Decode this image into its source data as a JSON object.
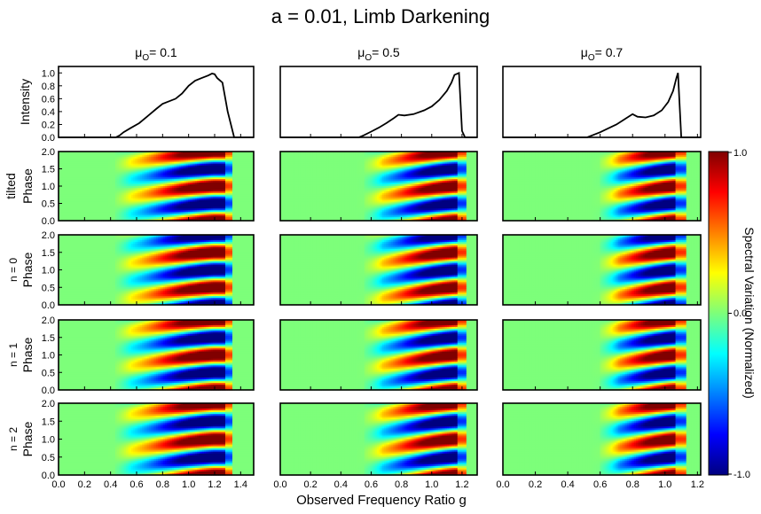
{
  "figure": {
    "title": "a = 0.01, Limb Darkening",
    "xlabel": "Observed Frequency Ratio g"
  },
  "columns": [
    {
      "mu_symbol": "μ",
      "mu_sub": "O",
      "mu_eq": "= 0.1"
    },
    {
      "mu_symbol": "μ",
      "mu_sub": "O",
      "mu_eq": "= 0.5"
    },
    {
      "mu_symbol": "μ",
      "mu_sub": "O",
      "mu_eq": "= 0.7"
    }
  ],
  "rows": [
    {
      "label_top": "",
      "label_main": "Intensity"
    },
    {
      "label_top": "tilted",
      "label_main": "Phase"
    },
    {
      "label_top": "n = 0",
      "label_main": "Phase"
    },
    {
      "label_top": "n = 1",
      "label_main": "Phase"
    },
    {
      "label_top": "n = 2",
      "label_main": "Phase"
    }
  ],
  "colorbar": {
    "label": "Spectral Variation (Normalized)",
    "ticks": [
      "1.0",
      "0.0",
      "-1.0"
    ],
    "colormap": "jet",
    "range": [
      -1.0,
      1.0
    ]
  },
  "chart_data": [
    {
      "type": "line",
      "panel": "intensity mu=0.1",
      "xlim": [
        0,
        1.5
      ],
      "ylim": [
        0,
        1.1
      ],
      "xticks": [
        "0.0",
        "0.2",
        "0.4",
        "0.6",
        "0.8",
        "1.0",
        "1.2",
        "1.4"
      ],
      "yticks": [
        "0.0",
        "0.2",
        "0.4",
        "0.6",
        "0.8",
        "1.0"
      ],
      "x": [
        0.0,
        0.44,
        0.47,
        0.5,
        0.55,
        0.62,
        0.68,
        0.75,
        0.8,
        0.9,
        0.95,
        1.0,
        1.05,
        1.1,
        1.15,
        1.18,
        1.2,
        1.22,
        1.26,
        1.3,
        1.35,
        1.5
      ],
      "y": [
        0.0,
        0.0,
        0.03,
        0.08,
        0.14,
        0.22,
        0.32,
        0.44,
        0.52,
        0.6,
        0.68,
        0.8,
        0.88,
        0.92,
        0.96,
        0.99,
        0.98,
        0.92,
        0.85,
        0.4,
        0.0,
        0.0
      ]
    },
    {
      "type": "line",
      "panel": "intensity mu=0.5",
      "xlim": [
        0,
        1.3
      ],
      "ylim": [
        0,
        1.1
      ],
      "xticks": [
        "0.0",
        "0.2",
        "0.4",
        "0.6",
        "0.8",
        "1.0",
        "1.2"
      ],
      "x": [
        0.0,
        0.52,
        0.55,
        0.6,
        0.65,
        0.7,
        0.75,
        0.78,
        0.82,
        0.88,
        0.95,
        1.0,
        1.05,
        1.1,
        1.13,
        1.15,
        1.18,
        1.2,
        1.22,
        1.3
      ],
      "y": [
        0.0,
        0.0,
        0.03,
        0.09,
        0.15,
        0.22,
        0.3,
        0.35,
        0.34,
        0.36,
        0.42,
        0.48,
        0.58,
        0.72,
        0.85,
        0.97,
        1.0,
        0.1,
        0.0,
        0.0
      ]
    },
    {
      "type": "line",
      "panel": "intensity mu=0.7",
      "xlim": [
        0,
        1.22
      ],
      "ylim": [
        0,
        1.1
      ],
      "xticks": [
        "0.0",
        "0.2",
        "0.4",
        "0.6",
        "0.8",
        "1.0",
        "1.2"
      ],
      "x": [
        0.0,
        0.52,
        0.55,
        0.6,
        0.65,
        0.7,
        0.75,
        0.8,
        0.83,
        0.88,
        0.93,
        0.98,
        1.02,
        1.05,
        1.07,
        1.08,
        1.1,
        1.22
      ],
      "y": [
        0.0,
        0.0,
        0.03,
        0.08,
        0.14,
        0.2,
        0.28,
        0.36,
        0.32,
        0.31,
        0.34,
        0.42,
        0.55,
        0.72,
        0.92,
        1.0,
        0.0,
        0.0
      ]
    },
    {
      "type": "heatmap",
      "panels": "phase vs observed frequency ratio g (rows: tilted, n=0, n=1, n=2; columns: mu_O = 0.1, 0.5, 0.7)",
      "ylim": [
        0,
        2.0
      ],
      "yticks": [
        "0.0",
        "0.5",
        "1.0",
        "1.5",
        "2.0"
      ],
      "value_range": [
        -1.0,
        1.0
      ]
    }
  ]
}
